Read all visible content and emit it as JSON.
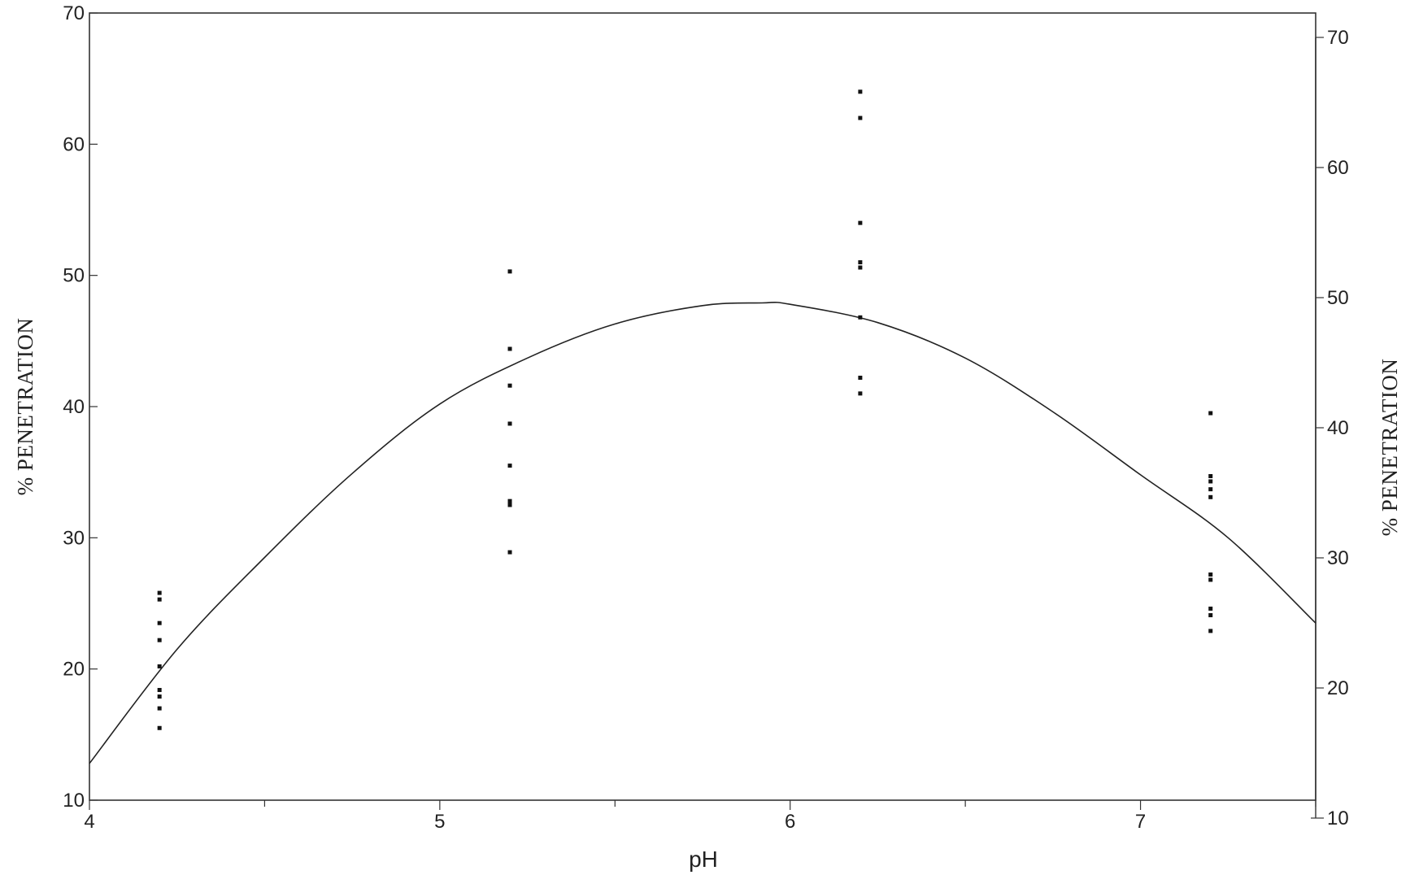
{
  "chart_data": {
    "type": "scatter",
    "title": "",
    "xlabel": "pH",
    "ylabel": "% PENETRATION",
    "ylabel_right": "% PENETRATION",
    "xlim": [
      4,
      7.5
    ],
    "ylim": [
      10,
      70
    ],
    "x_ticks": [
      4,
      5,
      6,
      7
    ],
    "x_minor_ticks": [
      4.5,
      5.5,
      6.5,
      7.5
    ],
    "y_ticks": [
      10,
      20,
      30,
      40,
      50,
      60,
      70
    ],
    "grid": false,
    "series": [
      {
        "type": "scatter",
        "points": [
          {
            "x": 4.2,
            "y": 25.8
          },
          {
            "x": 4.2,
            "y": 25.3
          },
          {
            "x": 4.2,
            "y": 23.5
          },
          {
            "x": 4.2,
            "y": 22.2
          },
          {
            "x": 4.2,
            "y": 20.2
          },
          {
            "x": 4.2,
            "y": 18.4
          },
          {
            "x": 4.2,
            "y": 17.9
          },
          {
            "x": 4.2,
            "y": 17.0
          },
          {
            "x": 4.2,
            "y": 15.5
          },
          {
            "x": 5.2,
            "y": 50.3
          },
          {
            "x": 5.2,
            "y": 44.4
          },
          {
            "x": 5.2,
            "y": 41.6
          },
          {
            "x": 5.2,
            "y": 38.7
          },
          {
            "x": 5.2,
            "y": 35.5
          },
          {
            "x": 5.2,
            "y": 32.8
          },
          {
            "x": 5.2,
            "y": 32.5
          },
          {
            "x": 5.2,
            "y": 28.9
          },
          {
            "x": 6.2,
            "y": 64.0
          },
          {
            "x": 6.2,
            "y": 62.0
          },
          {
            "x": 6.2,
            "y": 54.0
          },
          {
            "x": 6.2,
            "y": 51.0
          },
          {
            "x": 6.2,
            "y": 50.6
          },
          {
            "x": 6.2,
            "y": 46.8
          },
          {
            "x": 6.2,
            "y": 42.2
          },
          {
            "x": 6.2,
            "y": 41.0
          },
          {
            "x": 7.2,
            "y": 39.5
          },
          {
            "x": 7.2,
            "y": 34.7
          },
          {
            "x": 7.2,
            "y": 34.3
          },
          {
            "x": 7.2,
            "y": 33.7
          },
          {
            "x": 7.2,
            "y": 33.1
          },
          {
            "x": 7.2,
            "y": 27.2
          },
          {
            "x": 7.2,
            "y": 26.8
          },
          {
            "x": 7.2,
            "y": 24.6
          },
          {
            "x": 7.2,
            "y": 24.1
          },
          {
            "x": 7.2,
            "y": 22.9
          }
        ]
      },
      {
        "type": "line",
        "fit": "quadratic",
        "x": [
          4.0,
          4.25,
          4.5,
          4.75,
          5.0,
          5.25,
          5.5,
          5.75,
          5.92,
          6.0,
          6.25,
          6.5,
          6.75,
          7.0,
          7.25,
          7.5
        ],
        "y": [
          12.8,
          21.5,
          28.5,
          34.9,
          40.2,
          43.7,
          46.3,
          47.7,
          47.9,
          47.8,
          46.4,
          43.7,
          39.6,
          34.8,
          30.0,
          23.5
        ]
      }
    ]
  }
}
